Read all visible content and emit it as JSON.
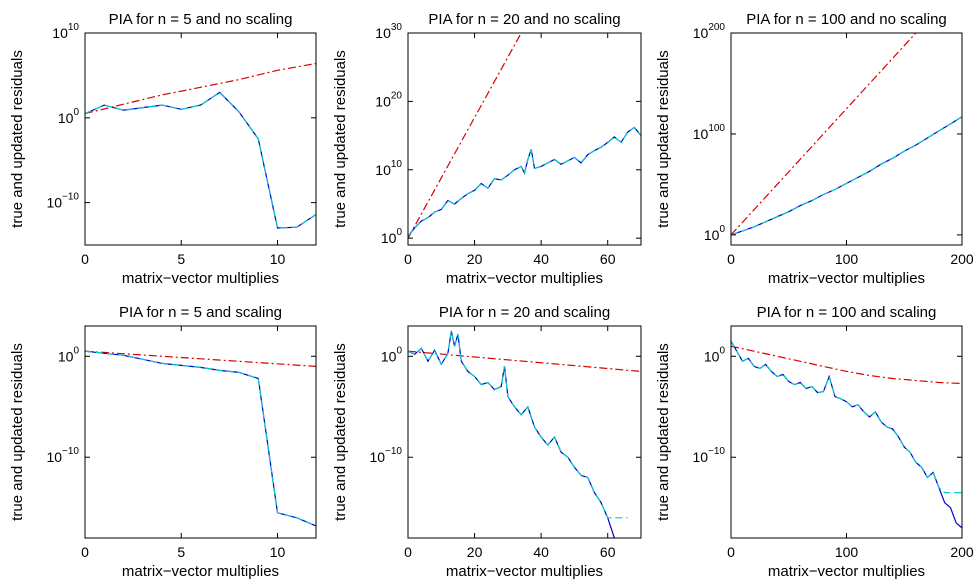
{
  "chart_data": [
    {
      "type": "line",
      "title": "PIA for n = 5 and no scaling",
      "xlabel": "matrix−vector multiplies",
      "ylabel": "true and updated residuals",
      "xlim": [
        0,
        12
      ],
      "ylim_log10": [
        -15,
        10
      ],
      "yscale": "log",
      "xticks": [
        0,
        5,
        10
      ],
      "yticks": [
        {
          "base": "10",
          "exp": "10",
          "v": 10
        },
        {
          "base": "10",
          "exp": "0",
          "v": 0
        },
        {
          "base": "10",
          "exp": "−10",
          "v": -10
        }
      ],
      "colors": {
        "true": "#0000cc",
        "updated": "#00cccc",
        "bound": "#dd0000"
      },
      "series": [
        {
          "key": "true",
          "style": "solid",
          "x": [
            0,
            1,
            2,
            3,
            4,
            5,
            6,
            7,
            8,
            9,
            10,
            11,
            12
          ],
          "log10y": [
            0.5,
            1.5,
            0.9,
            1.2,
            1.5,
            1.0,
            1.5,
            3.0,
            0.7,
            -2.5,
            -13.0,
            -12.9,
            -11.4
          ]
        },
        {
          "key": "updated",
          "style": "dashed",
          "x": [
            0,
            1,
            2,
            3,
            4,
            5,
            6,
            7,
            8,
            9,
            10,
            11,
            12
          ],
          "log10y": [
            0.5,
            1.5,
            0.9,
            1.2,
            1.5,
            1.0,
            1.5,
            3.0,
            0.7,
            -2.5,
            -13.0,
            -12.9,
            -11.4
          ]
        },
        {
          "key": "bound",
          "style": "dashdot",
          "x": [
            0,
            2,
            4,
            6,
            8,
            10,
            12
          ],
          "log10y": [
            0.5,
            1.6,
            2.7,
            3.6,
            4.5,
            5.6,
            6.4
          ]
        }
      ]
    },
    {
      "type": "line",
      "title": "PIA for n = 20 and no scaling",
      "xlabel": "matrix−vector multiplies",
      "ylabel": "true and updated residuals",
      "xlim": [
        0,
        70
      ],
      "ylim_log10": [
        -1,
        30
      ],
      "yscale": "log",
      "xticks": [
        0,
        20,
        40,
        60
      ],
      "yticks": [
        {
          "base": "10",
          "exp": "30",
          "v": 30
        },
        {
          "base": "10",
          "exp": "20",
          "v": 20
        },
        {
          "base": "10",
          "exp": "10",
          "v": 10
        },
        {
          "base": "10",
          "exp": "0",
          "v": 0
        }
      ],
      "colors": {
        "true": "#0000cc",
        "updated": "#00cccc",
        "bound": "#dd0000"
      },
      "series": [
        {
          "key": "true",
          "style": "solid",
          "x": [
            0,
            2,
            4,
            6,
            8,
            10,
            12,
            14,
            16,
            18,
            20,
            22,
            24,
            26,
            28,
            30,
            32,
            34,
            35,
            36,
            37,
            38,
            40,
            42,
            44,
            46,
            48,
            50,
            52,
            54,
            56,
            58,
            60,
            62,
            64,
            66,
            68,
            70
          ],
          "log10y": [
            0.3,
            1.5,
            2.5,
            3.0,
            3.8,
            4.2,
            5.5,
            5.0,
            5.8,
            6.5,
            7.0,
            8.0,
            7.3,
            8.7,
            8.5,
            9.2,
            10.0,
            10.5,
            9.5,
            11.5,
            13.0,
            10.2,
            10.5,
            11.0,
            11.5,
            10.8,
            11.3,
            11.8,
            11.0,
            12.2,
            12.8,
            13.3,
            14.0,
            14.8,
            14.0,
            15.5,
            16.2,
            15.0
          ]
        },
        {
          "key": "updated",
          "style": "dashed",
          "x": [
            0,
            2,
            4,
            6,
            8,
            10,
            12,
            14,
            16,
            18,
            20,
            22,
            24,
            26,
            28,
            30,
            32,
            34,
            35,
            36,
            37,
            38,
            40,
            42,
            44,
            46,
            48,
            50,
            52,
            54,
            56,
            58,
            60,
            62,
            64,
            66,
            68,
            70
          ],
          "log10y": [
            0.3,
            1.5,
            2.5,
            3.0,
            3.8,
            4.2,
            5.5,
            5.0,
            5.8,
            6.5,
            7.0,
            8.0,
            7.3,
            8.7,
            8.5,
            9.2,
            10.0,
            10.5,
            9.5,
            11.5,
            13.0,
            10.2,
            10.5,
            11.0,
            11.5,
            10.8,
            11.3,
            11.8,
            11.0,
            12.2,
            12.8,
            13.3,
            14.0,
            14.8,
            14.0,
            15.5,
            16.2,
            15.0
          ]
        },
        {
          "key": "bound",
          "style": "dashdot",
          "x": [
            0,
            34
          ],
          "log10y": [
            0.0,
            30.0
          ]
        }
      ]
    },
    {
      "type": "line",
      "title": "PIA for n = 100 and no scaling",
      "xlabel": "matrix−vector multiplies",
      "ylabel": "true and updated residuals",
      "xlim": [
        0,
        200
      ],
      "ylim_log10": [
        -10,
        200
      ],
      "yscale": "log",
      "xticks": [
        0,
        100,
        200
      ],
      "yticks": [
        {
          "base": "10",
          "exp": "200",
          "v": 200
        },
        {
          "base": "10",
          "exp": "100",
          "v": 100
        },
        {
          "base": "10",
          "exp": "0",
          "v": 0
        }
      ],
      "colors": {
        "true": "#0000cc",
        "updated": "#00cccc",
        "bound": "#dd0000"
      },
      "series": [
        {
          "key": "true",
          "style": "solid",
          "x": [
            0,
            10,
            20,
            30,
            40,
            50,
            60,
            70,
            80,
            90,
            100,
            110,
            120,
            130,
            140,
            150,
            160,
            170,
            180,
            190,
            200
          ],
          "log10y": [
            0,
            4,
            8,
            13,
            18,
            23,
            29,
            34,
            40,
            45,
            51,
            57,
            63,
            70,
            76,
            83,
            89,
            96,
            103,
            110,
            117
          ]
        },
        {
          "key": "updated",
          "style": "dashed",
          "x": [
            0,
            10,
            20,
            30,
            40,
            50,
            60,
            70,
            80,
            90,
            100,
            110,
            120,
            130,
            140,
            150,
            160,
            170,
            180,
            190,
            200
          ],
          "log10y": [
            0,
            4,
            8,
            13,
            18,
            23,
            29,
            34,
            40,
            45,
            51,
            57,
            63,
            70,
            76,
            83,
            89,
            96,
            103,
            110,
            117
          ]
        },
        {
          "key": "bound",
          "style": "dashdot",
          "x": [
            0,
            160
          ],
          "log10y": [
            0,
            200
          ]
        }
      ]
    },
    {
      "type": "line",
      "title": "PIA for n = 5 and scaling",
      "xlabel": "matrix−vector multiplies",
      "ylabel": "true and updated residuals",
      "xlim": [
        0,
        12
      ],
      "ylim_log10": [
        -18,
        3
      ],
      "yscale": "log",
      "xticks": [
        0,
        5,
        10
      ],
      "yticks": [
        {
          "base": "10",
          "exp": "0",
          "v": 0
        },
        {
          "base": "10",
          "exp": "−10",
          "v": -10
        }
      ],
      "colors": {
        "true": "#0000cc",
        "updated": "#00cccc",
        "bound": "#dd0000"
      },
      "series": [
        {
          "key": "true",
          "style": "solid",
          "x": [
            0,
            1,
            2,
            3,
            4,
            5,
            6,
            7,
            8,
            9,
            10,
            11,
            12
          ],
          "log10y": [
            0.5,
            0.3,
            0.1,
            -0.3,
            -0.7,
            -0.9,
            -1.1,
            -1.4,
            -1.6,
            -2.2,
            -15.5,
            -16.0,
            -16.8
          ]
        },
        {
          "key": "updated",
          "style": "dashed",
          "x": [
            0,
            1,
            2,
            3,
            4,
            5,
            6,
            7,
            8,
            9,
            10,
            11,
            12
          ],
          "log10y": [
            0.5,
            0.3,
            0.1,
            -0.3,
            -0.7,
            -0.9,
            -1.1,
            -1.4,
            -1.6,
            -2.2,
            -15.5,
            -16.0,
            -16.8
          ]
        },
        {
          "key": "bound",
          "style": "dashdot",
          "x": [
            0,
            12
          ],
          "log10y": [
            0.5,
            -1.0
          ]
        }
      ]
    },
    {
      "type": "line",
      "title": "PIA for n = 20 and scaling",
      "xlabel": "matrix−vector multiplies",
      "ylabel": "true and updated residuals",
      "xlim": [
        0,
        70
      ],
      "ylim_log10": [
        -18,
        3
      ],
      "yscale": "log",
      "xticks": [
        0,
        20,
        40,
        60
      ],
      "yticks": [
        {
          "base": "10",
          "exp": "0",
          "v": 0
        },
        {
          "base": "10",
          "exp": "−10",
          "v": -10
        }
      ],
      "colors": {
        "true": "#0000cc",
        "updated": "#00cccc",
        "bound": "#dd0000"
      },
      "series": [
        {
          "key": "true",
          "style": "solid",
          "x": [
            0,
            2,
            4,
            6,
            8,
            10,
            12,
            13,
            14,
            15,
            16,
            18,
            20,
            22,
            24,
            26,
            28,
            29,
            30,
            32,
            34,
            36,
            38,
            40,
            42,
            44,
            46,
            48,
            50,
            52,
            54,
            56,
            58,
            60,
            62
          ],
          "log10y": [
            0.5,
            0.2,
            0.8,
            -0.5,
            0.6,
            -0.8,
            0.3,
            2.5,
            1.0,
            2.2,
            -0.5,
            -1.5,
            -2.0,
            -2.8,
            -2.6,
            -3.3,
            -3.0,
            -1.0,
            -4.0,
            -5.0,
            -5.8,
            -5.0,
            -7.0,
            -8.0,
            -8.8,
            -8.0,
            -9.5,
            -10.0,
            -11.0,
            -11.8,
            -12.0,
            -13.5,
            -14.5,
            -16.0,
            -18.0
          ]
        },
        {
          "key": "updated",
          "style": "dashed",
          "x": [
            0,
            2,
            4,
            6,
            8,
            10,
            12,
            13,
            14,
            15,
            16,
            18,
            20,
            22,
            24,
            26,
            28,
            29,
            30,
            32,
            34,
            36,
            38,
            40,
            42,
            44,
            46,
            48,
            50,
            52,
            54,
            56,
            58,
            60,
            62,
            64,
            66
          ],
          "log10y": [
            0.5,
            0.2,
            0.8,
            -0.5,
            0.6,
            -0.8,
            0.3,
            2.5,
            1.0,
            2.2,
            -0.5,
            -1.5,
            -2.0,
            -2.8,
            -2.6,
            -3.3,
            -3.0,
            -1.0,
            -4.0,
            -5.0,
            -5.8,
            -5.0,
            -7.0,
            -8.0,
            -8.8,
            -8.0,
            -9.5,
            -10.0,
            -11.0,
            -11.8,
            -12.0,
            -13.5,
            -14.5,
            -16.0,
            -16.0,
            -16.0,
            -16.0
          ]
        },
        {
          "key": "bound",
          "style": "dashdot",
          "x": [
            0,
            70
          ],
          "log10y": [
            0.5,
            -1.5
          ]
        }
      ]
    },
    {
      "type": "line",
      "title": "PIA for n = 100 and scaling",
      "xlabel": "matrix−vector multiplies",
      "ylabel": "true and updated residuals",
      "xlim": [
        0,
        200
      ],
      "ylim_log10": [
        -18,
        3
      ],
      "yscale": "log",
      "xticks": [
        0,
        100,
        200
      ],
      "yticks": [
        {
          "base": "10",
          "exp": "0",
          "v": 0
        },
        {
          "base": "10",
          "exp": "−10",
          "v": -10
        }
      ],
      "colors": {
        "true": "#0000cc",
        "updated": "#00cccc",
        "bound": "#dd0000"
      },
      "series": [
        {
          "key": "true",
          "style": "solid",
          "x": [
            0,
            5,
            10,
            15,
            20,
            25,
            30,
            35,
            40,
            45,
            50,
            55,
            60,
            65,
            70,
            75,
            80,
            85,
            90,
            95,
            100,
            105,
            110,
            115,
            120,
            125,
            130,
            135,
            140,
            145,
            150,
            155,
            160,
            165,
            170,
            175,
            180,
            185,
            190,
            195,
            200
          ],
          "log10y": [
            1.5,
            0.5,
            -0.5,
            -0.2,
            -1.0,
            -1.2,
            -0.8,
            -1.5,
            -2.0,
            -1.8,
            -2.5,
            -2.8,
            -2.6,
            -3.2,
            -3.0,
            -3.6,
            -3.5,
            -2.0,
            -4.0,
            -4.2,
            -4.5,
            -5.0,
            -4.8,
            -5.5,
            -6.0,
            -5.5,
            -6.5,
            -7.0,
            -7.2,
            -8.0,
            -9.0,
            -9.5,
            -10.5,
            -11.0,
            -12.0,
            -11.5,
            -13.0,
            -14.5,
            -15.0,
            -16.5,
            -17.0
          ]
        },
        {
          "key": "updated",
          "style": "dashed",
          "x": [
            0,
            5,
            10,
            15,
            20,
            25,
            30,
            35,
            40,
            45,
            50,
            55,
            60,
            65,
            70,
            75,
            80,
            85,
            90,
            95,
            100,
            105,
            110,
            115,
            120,
            125,
            130,
            135,
            140,
            145,
            150,
            155,
            160,
            165,
            170,
            175,
            180,
            185,
            190,
            195,
            200
          ],
          "log10y": [
            1.5,
            0.5,
            -0.5,
            -0.2,
            -1.0,
            -1.2,
            -0.8,
            -1.5,
            -2.0,
            -1.8,
            -2.5,
            -2.8,
            -2.6,
            -3.2,
            -3.0,
            -3.6,
            -3.5,
            -2.0,
            -4.0,
            -4.2,
            -4.5,
            -5.0,
            -4.8,
            -5.5,
            -6.0,
            -5.5,
            -6.5,
            -7.0,
            -7.2,
            -8.0,
            -9.0,
            -9.5,
            -10.5,
            -11.0,
            -12.0,
            -11.5,
            -13.0,
            -13.5,
            -13.5,
            -13.5,
            -13.5
          ]
        },
        {
          "key": "bound",
          "style": "dashdot",
          "x": [
            0,
            20,
            40,
            60,
            80,
            100,
            120,
            140,
            160,
            180,
            200
          ],
          "log10y": [
            1.0,
            0.5,
            0.0,
            -0.5,
            -1.0,
            -1.5,
            -1.9,
            -2.2,
            -2.4,
            -2.6,
            -2.7
          ]
        }
      ]
    }
  ]
}
